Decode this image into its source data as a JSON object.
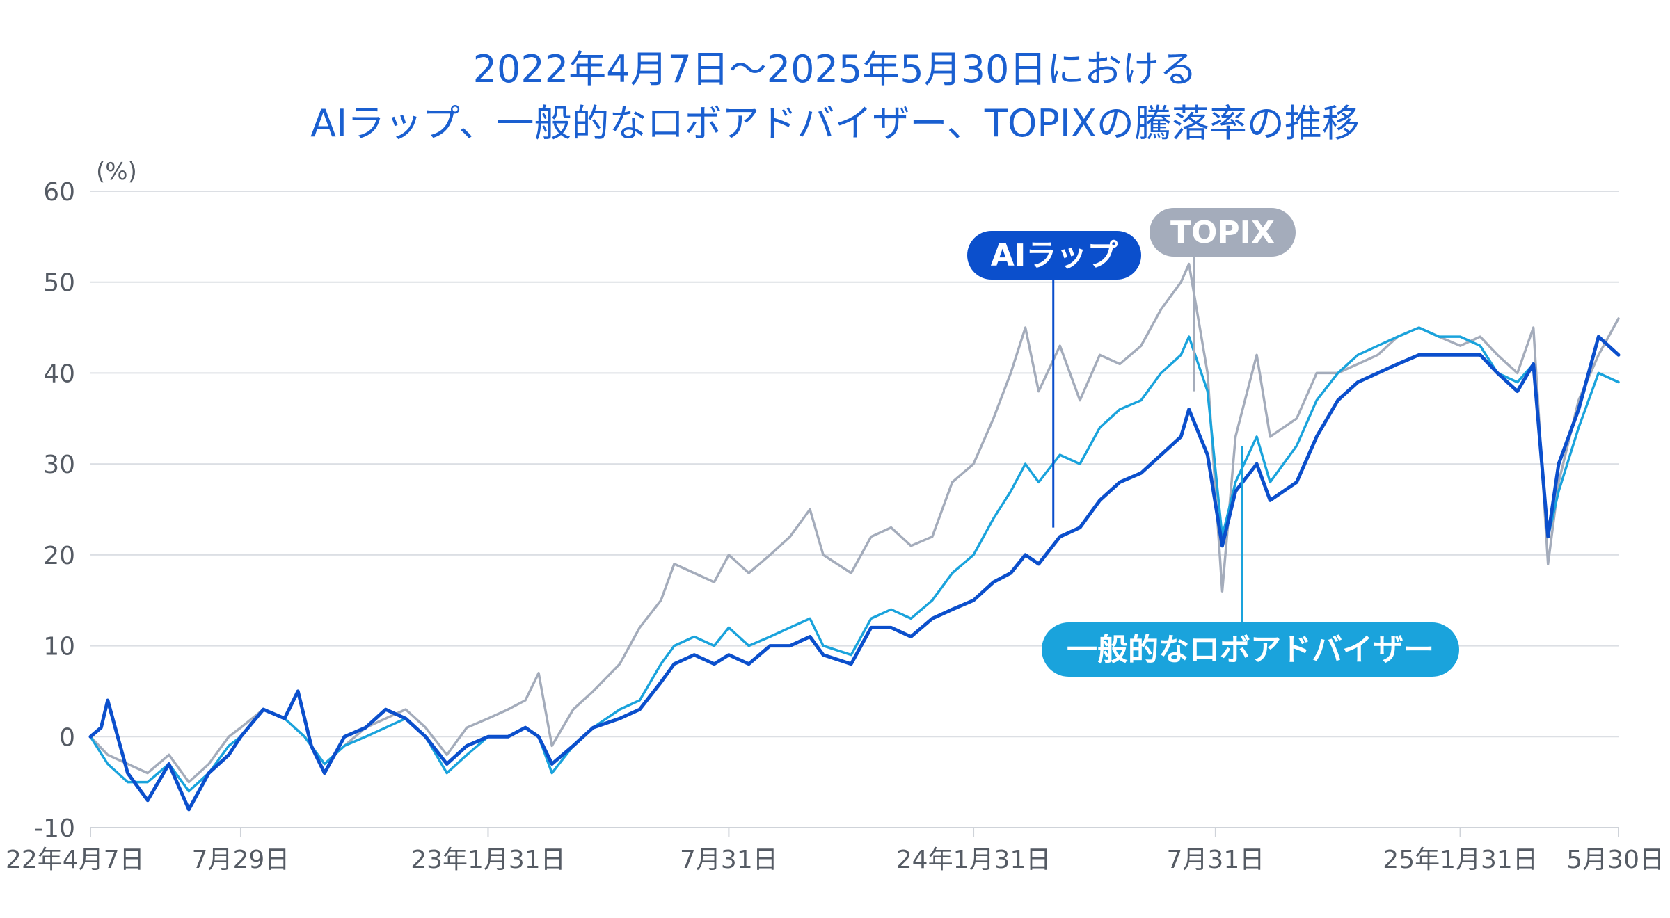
{
  "chart_data": {
    "type": "line",
    "title_lines": [
      "2022年4月7日〜2025年5月30日における",
      "AIラップ、一般的なロボアドバイザー、TOPIXの騰落率の推移"
    ],
    "y_unit": "(%)",
    "ylim": [
      -10,
      60
    ],
    "y_ticks": [
      60,
      50,
      40,
      30,
      20,
      10,
      0,
      -10
    ],
    "grid": true,
    "x_ticks": [
      {
        "label": "22年4月7日",
        "date": "2022-04-07"
      },
      {
        "label": "7月29日",
        "date": "2022-07-29"
      },
      {
        "label": "23年1月31日",
        "date": "2023-01-31"
      },
      {
        "label": "7月31日",
        "date": "2023-07-31"
      },
      {
        "label": "24年1月31日",
        "date": "2024-01-31"
      },
      {
        "label": "7月31日",
        "date": "2024-07-31"
      },
      {
        "label": "25年1月31日",
        "date": "2025-01-31"
      },
      {
        "label": "5月30日",
        "date": "2025-05-30"
      }
    ],
    "series": [
      {
        "name": "TOPIX",
        "color": "#a4acbb",
        "label_anchor": {
          "date": "2024-07-15",
          "value": 38
        },
        "points": [
          [
            "2022-04-07",
            0
          ],
          [
            "2022-04-20",
            -2
          ],
          [
            "2022-05-05",
            -3
          ],
          [
            "2022-05-20",
            -4
          ],
          [
            "2022-06-05",
            -2
          ],
          [
            "2022-06-20",
            -5
          ],
          [
            "2022-07-05",
            -3
          ],
          [
            "2022-07-20",
            0
          ],
          [
            "2022-07-29",
            1
          ],
          [
            "2022-08-15",
            3
          ],
          [
            "2022-08-31",
            2
          ],
          [
            "2022-09-15",
            0
          ],
          [
            "2022-09-30",
            -3
          ],
          [
            "2022-10-15",
            -1
          ],
          [
            "2022-10-31",
            1
          ],
          [
            "2022-11-15",
            2
          ],
          [
            "2022-11-30",
            3
          ],
          [
            "2022-12-15",
            1
          ],
          [
            "2022-12-31",
            -2
          ],
          [
            "2023-01-15",
            1
          ],
          [
            "2023-01-31",
            2
          ],
          [
            "2023-02-15",
            3
          ],
          [
            "2023-02-28",
            4
          ],
          [
            "2023-03-10",
            7
          ],
          [
            "2023-03-20",
            -1
          ],
          [
            "2023-04-05",
            3
          ],
          [
            "2023-04-20",
            5
          ],
          [
            "2023-05-10",
            8
          ],
          [
            "2023-05-25",
            12
          ],
          [
            "2023-06-10",
            15
          ],
          [
            "2023-06-20",
            19
          ],
          [
            "2023-07-05",
            18
          ],
          [
            "2023-07-20",
            17
          ],
          [
            "2023-07-31",
            20
          ],
          [
            "2023-08-15",
            18
          ],
          [
            "2023-08-31",
            20
          ],
          [
            "2023-09-15",
            22
          ],
          [
            "2023-09-30",
            25
          ],
          [
            "2023-10-10",
            20
          ],
          [
            "2023-10-31",
            18
          ],
          [
            "2023-11-15",
            22
          ],
          [
            "2023-11-30",
            23
          ],
          [
            "2023-12-15",
            21
          ],
          [
            "2023-12-31",
            22
          ],
          [
            "2024-01-15",
            28
          ],
          [
            "2024-01-31",
            30
          ],
          [
            "2024-02-15",
            35
          ],
          [
            "2024-02-28",
            40
          ],
          [
            "2024-03-10",
            45
          ],
          [
            "2024-03-20",
            38
          ],
          [
            "2024-04-05",
            43
          ],
          [
            "2024-04-20",
            37
          ],
          [
            "2024-05-05",
            42
          ],
          [
            "2024-05-20",
            41
          ],
          [
            "2024-06-05",
            43
          ],
          [
            "2024-06-20",
            47
          ],
          [
            "2024-07-05",
            50
          ],
          [
            "2024-07-11",
            52
          ],
          [
            "2024-07-25",
            40
          ],
          [
            "2024-08-05",
            16
          ],
          [
            "2024-08-15",
            33
          ],
          [
            "2024-08-31",
            42
          ],
          [
            "2024-09-10",
            33
          ],
          [
            "2024-09-30",
            35
          ],
          [
            "2024-10-15",
            40
          ],
          [
            "2024-10-31",
            40
          ],
          [
            "2024-11-15",
            41
          ],
          [
            "2024-11-30",
            42
          ],
          [
            "2024-12-15",
            44
          ],
          [
            "2024-12-31",
            45
          ],
          [
            "2025-01-15",
            44
          ],
          [
            "2025-01-31",
            43
          ],
          [
            "2025-02-15",
            44
          ],
          [
            "2025-02-28",
            42
          ],
          [
            "2025-03-15",
            40
          ],
          [
            "2025-03-27",
            45
          ],
          [
            "2025-04-07",
            19
          ],
          [
            "2025-04-15",
            28
          ],
          [
            "2025-04-30",
            37
          ],
          [
            "2025-05-15",
            42
          ],
          [
            "2025-05-30",
            46
          ]
        ]
      },
      {
        "name": "一般的なロボアドバイザー",
        "color": "#1aa3dc",
        "label_anchor": {
          "date": "2024-08-20",
          "value": 32
        },
        "points": [
          [
            "2022-04-07",
            0
          ],
          [
            "2022-04-20",
            -3
          ],
          [
            "2022-05-05",
            -5
          ],
          [
            "2022-05-20",
            -5
          ],
          [
            "2022-06-05",
            -3
          ],
          [
            "2022-06-20",
            -6
          ],
          [
            "2022-07-05",
            -4
          ],
          [
            "2022-07-20",
            -1
          ],
          [
            "2022-07-29",
            0
          ],
          [
            "2022-08-15",
            3
          ],
          [
            "2022-08-31",
            2
          ],
          [
            "2022-09-15",
            0
          ],
          [
            "2022-09-30",
            -3
          ],
          [
            "2022-10-15",
            -1
          ],
          [
            "2022-10-31",
            0
          ],
          [
            "2022-11-15",
            1
          ],
          [
            "2022-11-30",
            2
          ],
          [
            "2022-12-15",
            0
          ],
          [
            "2022-12-31",
            -4
          ],
          [
            "2023-01-15",
            -2
          ],
          [
            "2023-01-31",
            0
          ],
          [
            "2023-02-15",
            0
          ],
          [
            "2023-02-28",
            1
          ],
          [
            "2023-03-10",
            0
          ],
          [
            "2023-03-20",
            -4
          ],
          [
            "2023-04-05",
            -1
          ],
          [
            "2023-04-20",
            1
          ],
          [
            "2023-05-10",
            3
          ],
          [
            "2023-05-25",
            4
          ],
          [
            "2023-06-10",
            8
          ],
          [
            "2023-06-20",
            10
          ],
          [
            "2023-07-05",
            11
          ],
          [
            "2023-07-20",
            10
          ],
          [
            "2023-07-31",
            12
          ],
          [
            "2023-08-15",
            10
          ],
          [
            "2023-08-31",
            11
          ],
          [
            "2023-09-15",
            12
          ],
          [
            "2023-09-30",
            13
          ],
          [
            "2023-10-10",
            10
          ],
          [
            "2023-10-31",
            9
          ],
          [
            "2023-11-15",
            13
          ],
          [
            "2023-11-30",
            14
          ],
          [
            "2023-12-15",
            13
          ],
          [
            "2023-12-31",
            15
          ],
          [
            "2024-01-15",
            18
          ],
          [
            "2024-01-31",
            20
          ],
          [
            "2024-02-15",
            24
          ],
          [
            "2024-02-28",
            27
          ],
          [
            "2024-03-10",
            30
          ],
          [
            "2024-03-20",
            28
          ],
          [
            "2024-04-05",
            31
          ],
          [
            "2024-04-20",
            30
          ],
          [
            "2024-05-05",
            34
          ],
          [
            "2024-05-20",
            36
          ],
          [
            "2024-06-05",
            37
          ],
          [
            "2024-06-20",
            40
          ],
          [
            "2024-07-05",
            42
          ],
          [
            "2024-07-11",
            44
          ],
          [
            "2024-07-25",
            38
          ],
          [
            "2024-08-05",
            22
          ],
          [
            "2024-08-15",
            28
          ],
          [
            "2024-08-31",
            33
          ],
          [
            "2024-09-10",
            28
          ],
          [
            "2024-09-30",
            32
          ],
          [
            "2024-10-15",
            37
          ],
          [
            "2024-10-31",
            40
          ],
          [
            "2024-11-15",
            42
          ],
          [
            "2024-11-30",
            43
          ],
          [
            "2024-12-15",
            44
          ],
          [
            "2024-12-31",
            45
          ],
          [
            "2025-01-15",
            44
          ],
          [
            "2025-01-31",
            44
          ],
          [
            "2025-02-15",
            43
          ],
          [
            "2025-02-28",
            40
          ],
          [
            "2025-03-15",
            39
          ],
          [
            "2025-03-27",
            41
          ],
          [
            "2025-04-07",
            22
          ],
          [
            "2025-04-15",
            27
          ],
          [
            "2025-04-30",
            34
          ],
          [
            "2025-05-15",
            40
          ],
          [
            "2025-05-30",
            39
          ]
        ]
      },
      {
        "name": "AIラップ",
        "color": "#0b4fcc",
        "label_anchor": {
          "date": "2024-03-31",
          "value": 23
        },
        "points": [
          [
            "2022-04-07",
            0
          ],
          [
            "2022-04-15",
            1
          ],
          [
            "2022-04-20",
            4
          ],
          [
            "2022-05-05",
            -4
          ],
          [
            "2022-05-20",
            -7
          ],
          [
            "2022-06-05",
            -3
          ],
          [
            "2022-06-20",
            -8
          ],
          [
            "2022-07-05",
            -4
          ],
          [
            "2022-07-20",
            -2
          ],
          [
            "2022-07-29",
            0
          ],
          [
            "2022-08-15",
            3
          ],
          [
            "2022-08-31",
            2
          ],
          [
            "2022-09-10",
            5
          ],
          [
            "2022-09-20",
            -1
          ],
          [
            "2022-09-30",
            -4
          ],
          [
            "2022-10-15",
            0
          ],
          [
            "2022-10-31",
            1
          ],
          [
            "2022-11-15",
            3
          ],
          [
            "2022-11-30",
            2
          ],
          [
            "2022-12-15",
            0
          ],
          [
            "2022-12-31",
            -3
          ],
          [
            "2023-01-15",
            -1
          ],
          [
            "2023-01-31",
            0
          ],
          [
            "2023-02-15",
            0
          ],
          [
            "2023-02-28",
            1
          ],
          [
            "2023-03-10",
            0
          ],
          [
            "2023-03-20",
            -3
          ],
          [
            "2023-04-05",
            -1
          ],
          [
            "2023-04-20",
            1
          ],
          [
            "2023-05-10",
            2
          ],
          [
            "2023-05-25",
            3
          ],
          [
            "2023-06-10",
            6
          ],
          [
            "2023-06-20",
            8
          ],
          [
            "2023-07-05",
            9
          ],
          [
            "2023-07-20",
            8
          ],
          [
            "2023-07-31",
            9
          ],
          [
            "2023-08-15",
            8
          ],
          [
            "2023-08-31",
            10
          ],
          [
            "2023-09-15",
            10
          ],
          [
            "2023-09-30",
            11
          ],
          [
            "2023-10-10",
            9
          ],
          [
            "2023-10-31",
            8
          ],
          [
            "2023-11-15",
            12
          ],
          [
            "2023-11-30",
            12
          ],
          [
            "2023-12-15",
            11
          ],
          [
            "2023-12-31",
            13
          ],
          [
            "2024-01-15",
            14
          ],
          [
            "2024-01-31",
            15
          ],
          [
            "2024-02-15",
            17
          ],
          [
            "2024-02-28",
            18
          ],
          [
            "2024-03-10",
            20
          ],
          [
            "2024-03-20",
            19
          ],
          [
            "2024-04-05",
            22
          ],
          [
            "2024-04-20",
            23
          ],
          [
            "2024-05-05",
            26
          ],
          [
            "2024-05-20",
            28
          ],
          [
            "2024-06-05",
            29
          ],
          [
            "2024-06-20",
            31
          ],
          [
            "2024-07-05",
            33
          ],
          [
            "2024-07-11",
            36
          ],
          [
            "2024-07-25",
            31
          ],
          [
            "2024-08-05",
            21
          ],
          [
            "2024-08-15",
            27
          ],
          [
            "2024-08-31",
            30
          ],
          [
            "2024-09-10",
            26
          ],
          [
            "2024-09-30",
            28
          ],
          [
            "2024-10-15",
            33
          ],
          [
            "2024-10-31",
            37
          ],
          [
            "2024-11-15",
            39
          ],
          [
            "2024-11-30",
            40
          ],
          [
            "2024-12-15",
            41
          ],
          [
            "2024-12-31",
            42
          ],
          [
            "2025-01-15",
            42
          ],
          [
            "2025-01-31",
            42
          ],
          [
            "2025-02-15",
            42
          ],
          [
            "2025-02-28",
            40
          ],
          [
            "2025-03-15",
            38
          ],
          [
            "2025-03-27",
            41
          ],
          [
            "2025-04-07",
            22
          ],
          [
            "2025-04-15",
            30
          ],
          [
            "2025-04-30",
            36
          ],
          [
            "2025-05-15",
            44
          ],
          [
            "2025-05-30",
            42
          ]
        ]
      }
    ]
  }
}
